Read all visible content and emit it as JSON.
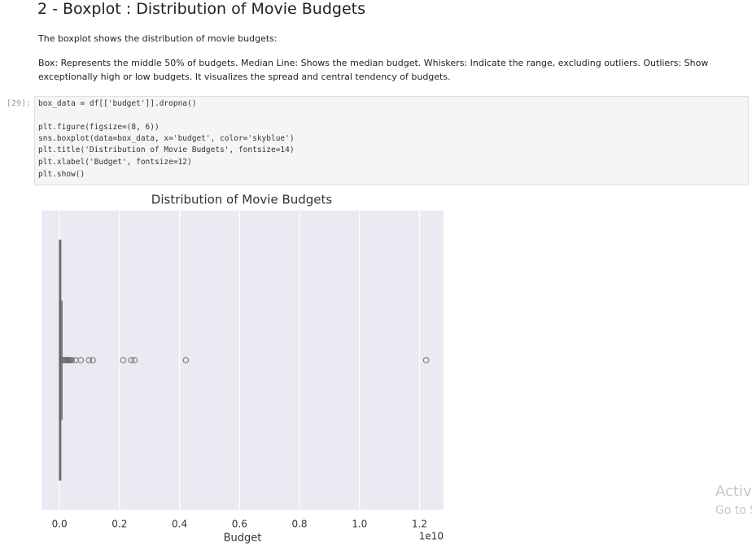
{
  "header": {
    "title": "2 - Boxplot : Distribution of Movie Budgets"
  },
  "markdown": {
    "paragraphs": [
      "The boxplot shows the distribution of movie budgets:",
      "Box: Represents the middle 50% of budgets. Median Line: Shows the median budget. Whiskers: Indicate the range, excluding outliers. Outliers: Show exceptionally high or low budgets. It visualizes the spread and central tendency of budgets."
    ]
  },
  "code_cell": {
    "prompt": "[29]:",
    "lines": [
      "box_data = df[['budget']].dropna()",
      "plt.figure(figsize=(8, 6))",
      "sns.boxplot(data=box_data, x='budget', color='skyblue')",
      "plt.title('Distribution of Movie Budgets', fontsize=14)",
      "plt.xlabel('Budget', fontsize=12)",
      "plt.show()"
    ]
  },
  "chart_data": {
    "type": "box",
    "title": "Distribution of Movie Budgets",
    "x_label": "Budget",
    "x_offset_label": "1e10",
    "color": "#87ceeb",
    "stats": {
      "whislo": 0,
      "q1": 0.0003,
      "med": 0.0012,
      "q3": 0.004,
      "whishi": 0.008
    },
    "fliers": [
      0.012,
      0.015,
      0.018,
      0.021,
      0.024,
      0.027,
      0.03,
      0.033,
      0.036,
      0.041,
      0.054,
      0.071,
      0.098,
      0.111,
      0.212,
      0.239,
      0.25,
      0.421,
      1.222
    ],
    "xlim": [
      -0.06,
      1.28
    ],
    "xticks": [
      {
        "value": 0,
        "label": "0.0"
      },
      {
        "value": 0.2,
        "label": "0.2"
      },
      {
        "value": 0.4,
        "label": "0.4"
      },
      {
        "value": 0.6,
        "label": "0.6"
      },
      {
        "value": 0.8,
        "label": "0.8"
      },
      {
        "value": 1,
        "label": "1.0"
      },
      {
        "value": 1.2,
        "label": "1.2"
      }
    ],
    "grid": true
  },
  "watermark": {
    "line1": "Activ",
    "line2": "Go to S"
  }
}
